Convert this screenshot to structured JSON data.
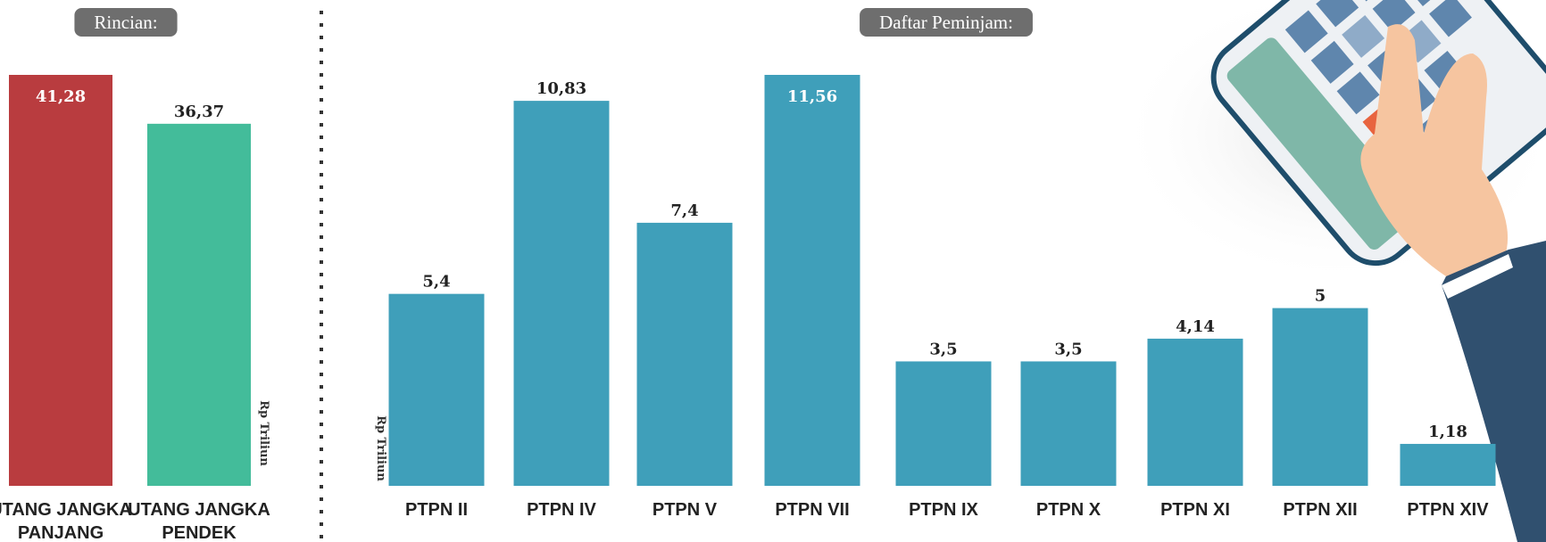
{
  "chart_data": [
    {
      "type": "bar",
      "title": "Rincian:",
      "y_label": "Rp Triliun",
      "categories": [
        "UTANG JANGKA PANJANG",
        "UTANG JANGKA PENDEK"
      ],
      "values": [
        41.28,
        36.37
      ],
      "value_labels": [
        "41,28",
        "36,37"
      ],
      "colors": [
        "#b93c3f",
        "#43bc9a"
      ]
    },
    {
      "type": "bar",
      "title": "Daftar Peminjam:",
      "y_label": "Rp Triliun",
      "categories": [
        "PTPN II",
        "PTPN IV",
        "PTPN V",
        "PTPN VII",
        "PTPN IX",
        "PTPN X",
        "PTPN XI",
        "PTPN XII",
        "PTPN XIV"
      ],
      "values": [
        5.4,
        10.83,
        7.4,
        11.56,
        3.5,
        3.5,
        4.14,
        5,
        1.18
      ],
      "value_labels": [
        "5,4",
        "10,83",
        "7,4",
        "11,56",
        "3,5",
        "3,5",
        "4,14",
        "5",
        "1,18"
      ],
      "color": "#3f9fba"
    }
  ]
}
